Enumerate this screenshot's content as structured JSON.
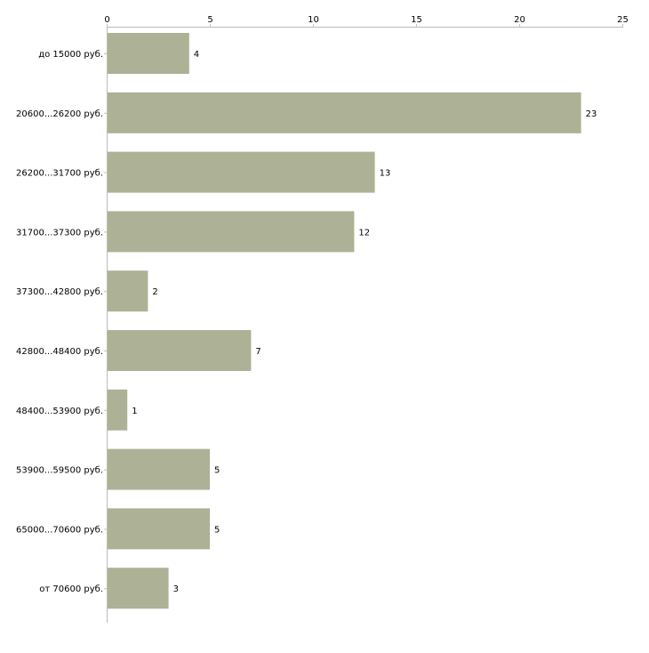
{
  "chart_data": {
    "type": "bar",
    "orientation": "horizontal",
    "title": "",
    "xlabel": "",
    "ylabel": "",
    "categories": [
      "до 15000 руб.",
      "20600...26200 руб.",
      "26200...31700 руб.",
      "31700...37300 руб.",
      "37300...42800 руб.",
      "42800...48400 руб.",
      "48400...53900 руб.",
      "53900...59500 руб.",
      "65000...70600 руб.",
      "от 70600 руб."
    ],
    "values": [
      4,
      23,
      13,
      12,
      2,
      7,
      1,
      5,
      5,
      3
    ],
    "xlim": [
      0,
      25
    ],
    "xticks": [
      0,
      5,
      10,
      15,
      20,
      25
    ],
    "grid": false,
    "bar_color": "#adb296",
    "axis_color": "#bbbbbb",
    "tick_color": "#c8c896"
  }
}
